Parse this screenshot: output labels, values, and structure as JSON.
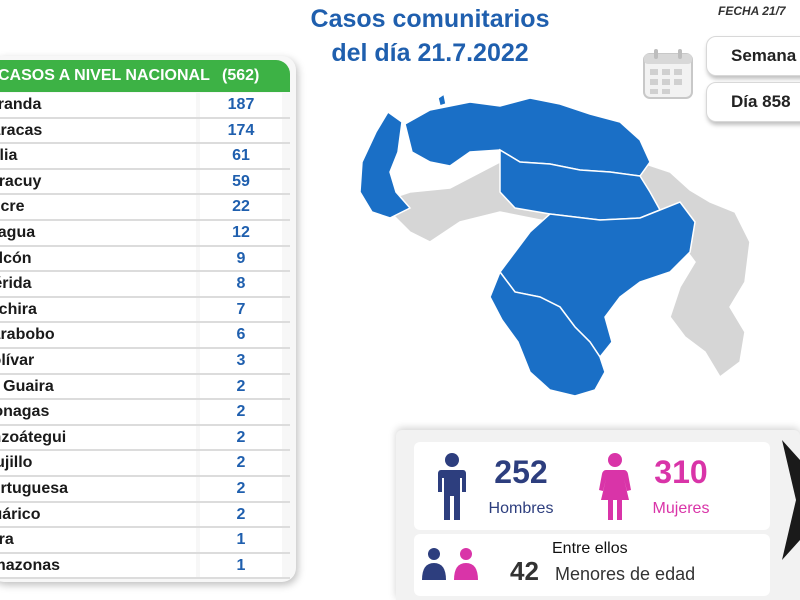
{
  "header": {
    "title_line1": "Casos comunitarios",
    "title_line2": "del día 21.7.2022",
    "fecha": "FECHA 21/7",
    "semana": "Semana",
    "dia": "Día 858"
  },
  "table": {
    "header": "CASOS A NIVEL NACIONAL",
    "total": "(562)",
    "rows": [
      {
        "state": "Miranda",
        "count": "187"
      },
      {
        "state": "Caracas",
        "count": "174"
      },
      {
        "state": "Zulia",
        "count": "61"
      },
      {
        "state": "Yaracuy",
        "count": "59"
      },
      {
        "state": "Sucre",
        "count": "22"
      },
      {
        "state": "Aragua",
        "count": "12"
      },
      {
        "state": "Falcón",
        "count": "9"
      },
      {
        "state": "Mérida",
        "count": "8"
      },
      {
        "state": "Táchira",
        "count": "7"
      },
      {
        "state": "Carabobo",
        "count": "6"
      },
      {
        "state": "Bolívar",
        "count": "3"
      },
      {
        "state": "La Guaira",
        "count": "2"
      },
      {
        "state": "Monagas",
        "count": "2"
      },
      {
        "state": "Anzoátegui",
        "count": "2"
      },
      {
        "state": "Trujillo",
        "count": "2"
      },
      {
        "state": "Portuguesa",
        "count": "2"
      },
      {
        "state": "Guárico",
        "count": "2"
      },
      {
        "state": "Lara",
        "count": "1"
      },
      {
        "state": "Amazonas",
        "count": "1"
      }
    ]
  },
  "stats": {
    "men_count": "252",
    "men_label": "Hombres",
    "women_count": "310",
    "women_label": "Mujeres",
    "entre": "Entre ellos",
    "minors_count": "42",
    "minors_label": "Menores de edad"
  },
  "colors": {
    "accent_blue": "#1f5fae",
    "map_blue": "#1a6fc6",
    "map_gray": "#d6d6d6",
    "header_green": "#3db245",
    "men_navy": "#2d3e7e",
    "women_pink": "#d934a8"
  },
  "icons": {
    "calendar": "calendar-icon",
    "man": "man-icon",
    "woman": "woman-icon",
    "children": "children-icon"
  }
}
